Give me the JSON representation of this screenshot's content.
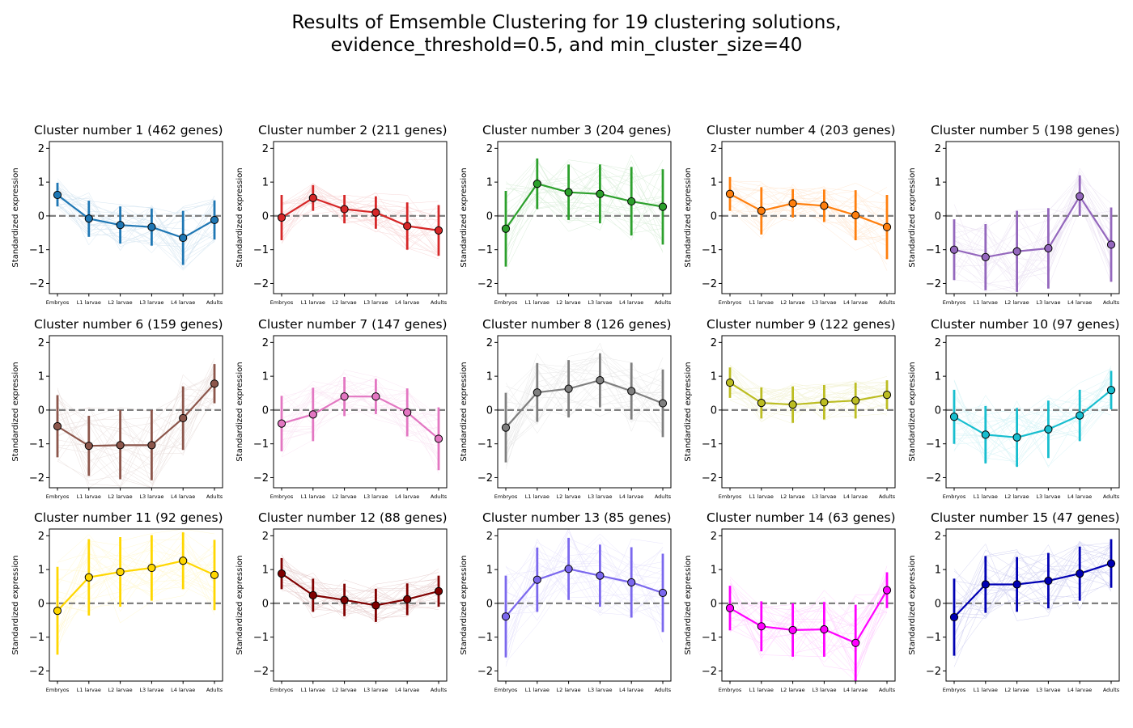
{
  "figure": {
    "title_line1": "Results of Emsemble Clustering for 19 clustering solutions,",
    "title_line2": "evidence_threshold=0.5, and min_cluster_size=40"
  },
  "chart_data": {
    "type": "line",
    "categories": [
      "Embryos",
      "L1 larvae",
      "L2 larvae",
      "L3 larvae",
      "L4 larvae",
      "Adults"
    ],
    "ylabel": "Standardized expression",
    "ylim": [
      -2.3,
      2.2
    ],
    "yticks": [
      -2,
      -1,
      0,
      1,
      2
    ],
    "reference_line": 0,
    "panels": [
      {
        "title": "Cluster number 1 (462 genes)",
        "color": "#1f77b4",
        "means": [
          0.62,
          -0.08,
          -0.27,
          -0.33,
          -0.65,
          -0.12
        ],
        "lower": [
          0.28,
          -0.62,
          -0.82,
          -0.88,
          -1.45,
          -0.7
        ],
        "upper": [
          0.98,
          0.45,
          0.28,
          0.22,
          0.15,
          0.46
        ]
      },
      {
        "title": "Cluster number 2 (211 genes)",
        "color": "#d62728",
        "means": [
          -0.05,
          0.53,
          0.2,
          0.1,
          -0.3,
          -0.43
        ],
        "lower": [
          -0.72,
          0.15,
          -0.22,
          -0.38,
          -1.0,
          -1.18
        ],
        "upper": [
          0.62,
          0.91,
          0.62,
          0.58,
          0.4,
          0.32
        ]
      },
      {
        "title": "Cluster number 3 (204 genes)",
        "color": "#2ca02c",
        "means": [
          -0.38,
          0.95,
          0.7,
          0.65,
          0.43,
          0.27
        ],
        "lower": [
          -1.5,
          0.2,
          -0.12,
          -0.22,
          -0.58,
          -0.85
        ],
        "upper": [
          0.74,
          1.7,
          1.52,
          1.52,
          1.45,
          1.38
        ]
      },
      {
        "title": "Cluster number 4 (203 genes)",
        "color": "#ff7f0e",
        "means": [
          0.65,
          0.15,
          0.37,
          0.3,
          0.02,
          -0.33
        ],
        "lower": [
          0.15,
          -0.55,
          -0.05,
          -0.18,
          -0.72,
          -1.28
        ],
        "upper": [
          1.15,
          0.85,
          0.79,
          0.78,
          0.76,
          0.62
        ]
      },
      {
        "title": "Cluster number 5 (198 genes)",
        "color": "#9467bd",
        "means": [
          -1.0,
          -1.22,
          -1.05,
          -0.96,
          0.58,
          -0.85
        ],
        "lower": [
          -1.9,
          -2.2,
          -2.25,
          -2.15,
          0.0,
          -1.95
        ],
        "upper": [
          -0.1,
          -0.24,
          0.15,
          0.23,
          1.2,
          0.25
        ]
      },
      {
        "title": "Cluster number 6 (159 genes)",
        "color": "#8c564b",
        "means": [
          -0.48,
          -1.06,
          -1.04,
          -1.04,
          -0.24,
          0.78
        ],
        "lower": [
          -1.4,
          -1.95,
          -2.05,
          -2.08,
          -1.18,
          0.2
        ],
        "upper": [
          0.44,
          -0.17,
          0.0,
          0.0,
          0.7,
          1.36
        ]
      },
      {
        "title": "Cluster number 7 (147 genes)",
        "color": "#e377c2",
        "means": [
          -0.4,
          -0.13,
          0.4,
          0.4,
          -0.07,
          -0.85
        ],
        "lower": [
          -1.22,
          -0.92,
          -0.18,
          -0.12,
          -0.78,
          -1.78
        ],
        "upper": [
          0.42,
          0.66,
          0.98,
          0.92,
          0.64,
          0.08
        ]
      },
      {
        "title": "Cluster number 8 (126 genes)",
        "color": "#7f7f7f",
        "means": [
          -0.52,
          0.52,
          0.63,
          0.88,
          0.56,
          0.2
        ],
        "lower": [
          -1.55,
          -0.35,
          -0.22,
          0.08,
          -0.28,
          -0.8
        ],
        "upper": [
          0.51,
          1.39,
          1.48,
          1.68,
          1.4,
          1.2
        ]
      },
      {
        "title": "Cluster number 9 (122 genes)",
        "color": "#bcbd22",
        "means": [
          0.81,
          0.21,
          0.16,
          0.23,
          0.28,
          0.45
        ],
        "lower": [
          0.36,
          -0.25,
          -0.38,
          -0.28,
          -0.25,
          0.02
        ],
        "upper": [
          1.26,
          0.67,
          0.7,
          0.74,
          0.81,
          0.88
        ]
      },
      {
        "title": "Cluster number 10 (97 genes)",
        "color": "#17becf",
        "means": [
          -0.2,
          -0.73,
          -0.81,
          -0.57,
          -0.16,
          0.59
        ],
        "lower": [
          -1.0,
          -1.58,
          -1.68,
          -1.42,
          -0.92,
          0.02
        ],
        "upper": [
          0.6,
          0.12,
          0.06,
          0.28,
          0.6,
          1.16
        ]
      },
      {
        "title": "Cluster number 11 (92 genes)",
        "color": "#ffd700",
        "means": [
          -0.22,
          0.77,
          0.93,
          1.05,
          1.26,
          0.84
        ],
        "lower": [
          -1.52,
          -0.36,
          -0.1,
          0.08,
          0.42,
          -0.2
        ],
        "upper": [
          1.08,
          1.9,
          1.96,
          2.02,
          2.1,
          1.88
        ]
      },
      {
        "title": "Cluster number 12 (88 genes)",
        "color": "#800000",
        "means": [
          0.88,
          0.24,
          0.1,
          -0.06,
          0.12,
          0.36
        ],
        "lower": [
          0.42,
          -0.25,
          -0.38,
          -0.55,
          -0.35,
          -0.1
        ],
        "upper": [
          1.34,
          0.73,
          0.58,
          0.43,
          0.59,
          0.82
        ]
      },
      {
        "title": "Cluster number 13 (85 genes)",
        "color": "#7b68ee",
        "means": [
          -0.39,
          0.7,
          1.02,
          0.82,
          0.62,
          0.31
        ],
        "lower": [
          -1.6,
          -0.25,
          0.1,
          -0.1,
          -0.42,
          -0.85
        ],
        "upper": [
          0.82,
          1.65,
          1.94,
          1.74,
          1.66,
          1.47
        ]
      },
      {
        "title": "Cluster number 14 (63 genes)",
        "color": "#ff00ff",
        "means": [
          -0.14,
          -0.68,
          -0.79,
          -0.77,
          -1.17,
          0.39
        ],
        "lower": [
          -0.8,
          -1.42,
          -1.58,
          -1.58,
          -2.3,
          -0.14
        ],
        "upper": [
          0.52,
          0.06,
          0.0,
          0.04,
          -0.04,
          0.92
        ]
      },
      {
        "title": "Cluster number 15 (47 genes)",
        "color": "#0000b3",
        "means": [
          -0.41,
          0.56,
          0.56,
          0.67,
          0.88,
          1.18
        ],
        "lower": [
          -1.55,
          -0.28,
          -0.25,
          -0.15,
          0.08,
          0.46
        ],
        "upper": [
          0.73,
          1.4,
          1.37,
          1.49,
          1.68,
          1.9
        ]
      }
    ]
  }
}
